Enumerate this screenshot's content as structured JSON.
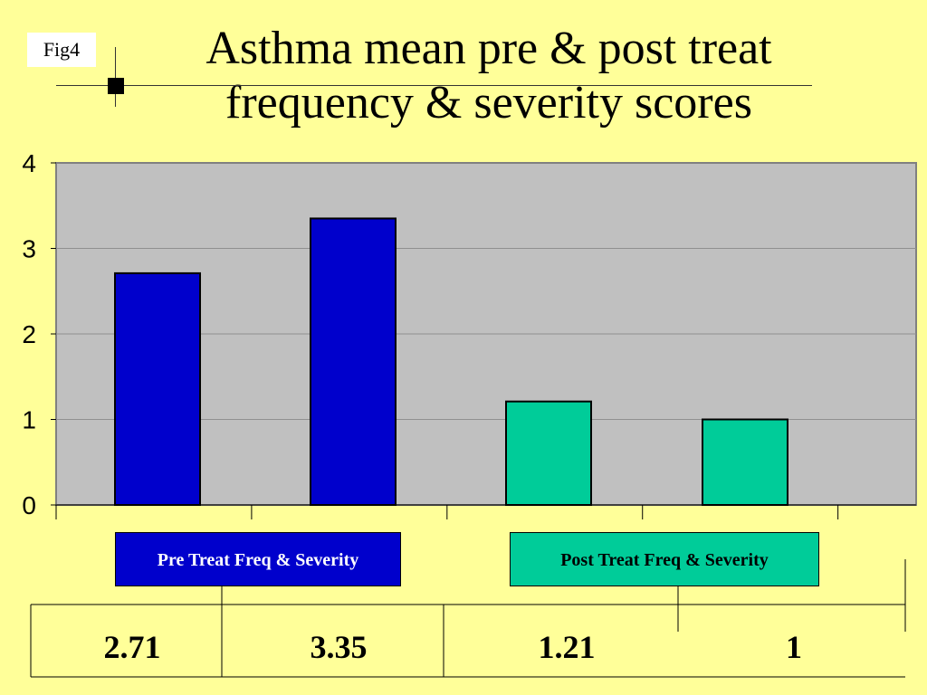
{
  "fig_label": "Fig4",
  "title_line1": "Asthma mean pre & post treat",
  "title_line2": "frequency & severity scores",
  "colors": {
    "background": "#ffff99",
    "plot_area": "#c0c0c0",
    "pre": "#0000cc",
    "post": "#00cc99"
  },
  "chart_data": {
    "type": "bar",
    "ylim": [
      0,
      4
    ],
    "yticks": [
      "0",
      "1",
      "2",
      "3",
      "4"
    ],
    "grid": true,
    "series": [
      {
        "name": "Pre Treat Freq & Severity",
        "values": [
          2.71,
          3.35
        ]
      },
      {
        "name": "Post Treat Freq & Severity",
        "values": [
          1.21,
          1
        ]
      }
    ],
    "value_labels": [
      "2.71",
      "3.35",
      "1.21",
      "1"
    ]
  }
}
